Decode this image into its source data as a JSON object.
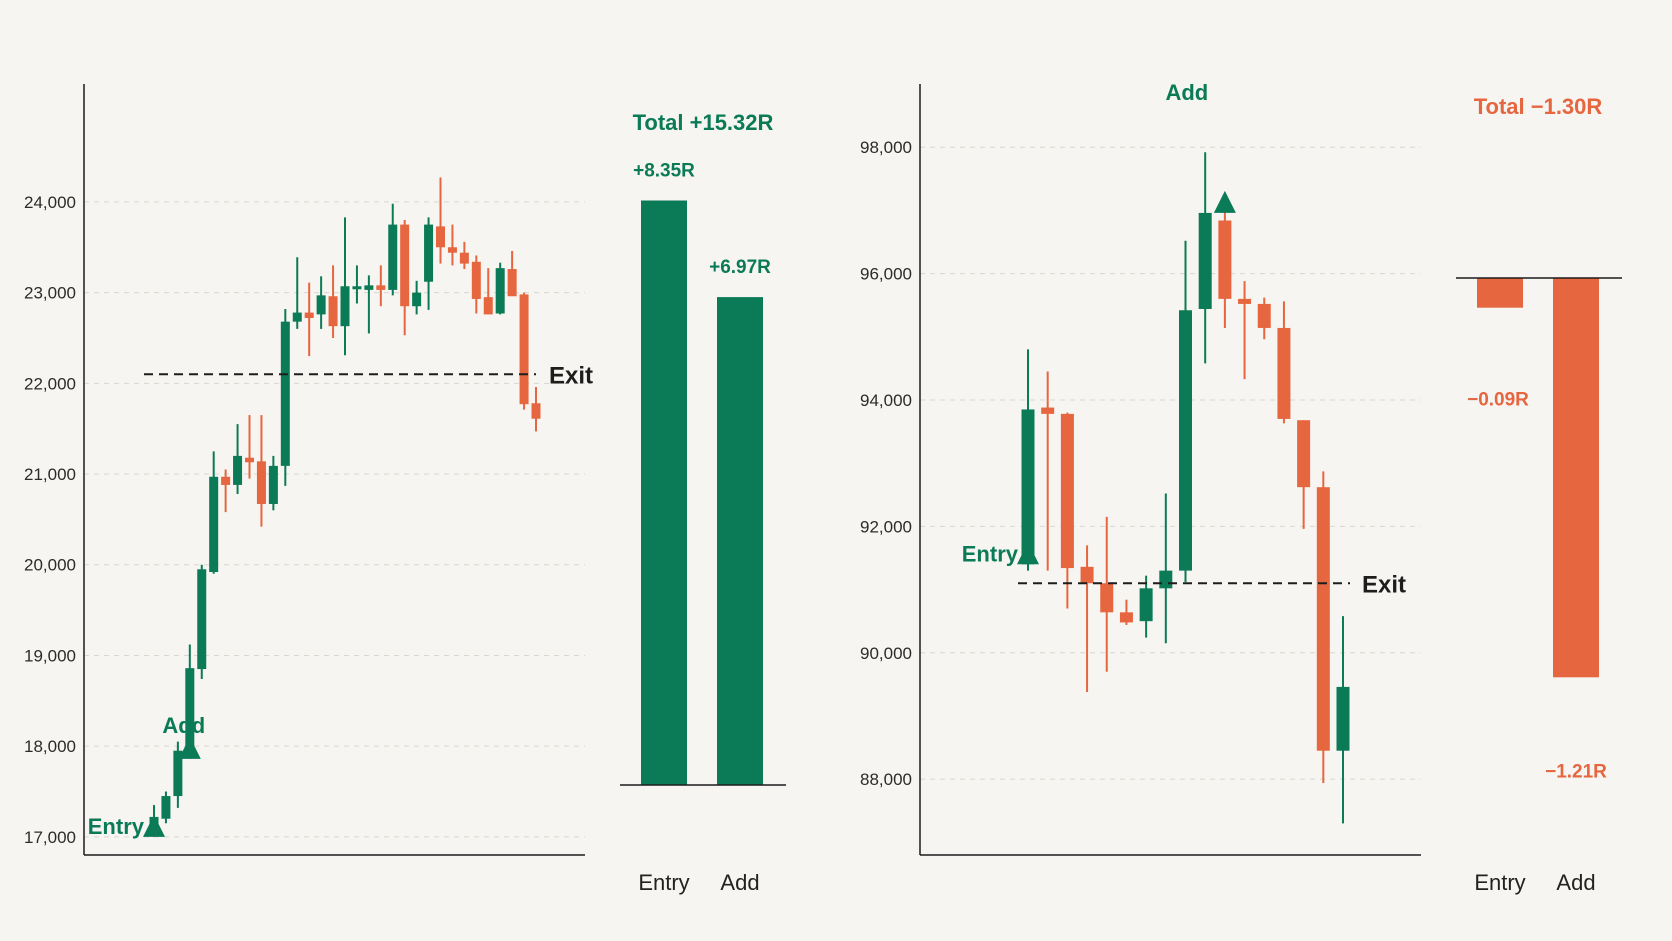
{
  "colors": {
    "up": "#0b7a57",
    "down": "#e5663f",
    "grid": "#d9d6cf",
    "axis": "#1d1d1d"
  },
  "chart_data": [
    {
      "type": "candlestick",
      "ylim": [
        16800,
        25300
      ],
      "yticks": [
        17000,
        18000,
        19000,
        20000,
        21000,
        22000,
        23000,
        24000
      ],
      "ytick_labels": [
        "17,000",
        "18,000",
        "19,000",
        "20,000",
        "21,000",
        "22,000",
        "23,000",
        "24,000"
      ],
      "grid": "horizontal dashed",
      "exit_level": 22100,
      "exit_label": "Exit",
      "markers": [
        {
          "label": "Entry",
          "candle": 0,
          "price": 17000,
          "label_side": "left"
        },
        {
          "label": "Add",
          "candle": 3,
          "price": 17860,
          "label_side": "above"
        }
      ],
      "candles": [
        {
          "o": 17050,
          "h": 17350,
          "l": 17000,
          "c": 17220
        },
        {
          "o": 17200,
          "h": 17500,
          "l": 17150,
          "c": 17450
        },
        {
          "o": 17450,
          "h": 18050,
          "l": 17320,
          "c": 17950
        },
        {
          "o": 17900,
          "h": 19120,
          "l": 17860,
          "c": 18860
        },
        {
          "o": 18850,
          "h": 20000,
          "l": 18740,
          "c": 19950
        },
        {
          "o": 19920,
          "h": 21250,
          "l": 19900,
          "c": 20970
        },
        {
          "o": 20970,
          "h": 21050,
          "l": 20580,
          "c": 20880
        },
        {
          "o": 20880,
          "h": 21550,
          "l": 20780,
          "c": 21200
        },
        {
          "o": 21180,
          "h": 21650,
          "l": 20950,
          "c": 21130
        },
        {
          "o": 21140,
          "h": 21650,
          "l": 20420,
          "c": 20670
        },
        {
          "o": 20670,
          "h": 21200,
          "l": 20600,
          "c": 21090
        },
        {
          "o": 21090,
          "h": 22820,
          "l": 20870,
          "c": 22680
        },
        {
          "o": 22680,
          "h": 23390,
          "l": 22600,
          "c": 22780
        },
        {
          "o": 22780,
          "h": 23110,
          "l": 22300,
          "c": 22720
        },
        {
          "o": 22760,
          "h": 23180,
          "l": 22600,
          "c": 22970
        },
        {
          "o": 22960,
          "h": 23300,
          "l": 22500,
          "c": 22630
        },
        {
          "o": 22630,
          "h": 23830,
          "l": 22310,
          "c": 23070
        },
        {
          "o": 23040,
          "h": 23300,
          "l": 22880,
          "c": 23070
        },
        {
          "o": 23030,
          "h": 23190,
          "l": 22550,
          "c": 23080
        },
        {
          "o": 23080,
          "h": 23300,
          "l": 22850,
          "c": 23030
        },
        {
          "o": 23030,
          "h": 23980,
          "l": 22970,
          "c": 23750
        },
        {
          "o": 23750,
          "h": 23800,
          "l": 22530,
          "c": 22850
        },
        {
          "o": 22850,
          "h": 23130,
          "l": 22760,
          "c": 23000
        },
        {
          "o": 23120,
          "h": 23830,
          "l": 22810,
          "c": 23750
        },
        {
          "o": 23730,
          "h": 24270,
          "l": 23320,
          "c": 23500
        },
        {
          "o": 23500,
          "h": 23750,
          "l": 23300,
          "c": 23440
        },
        {
          "o": 23440,
          "h": 23560,
          "l": 23260,
          "c": 23320
        },
        {
          "o": 23340,
          "h": 23410,
          "l": 22770,
          "c": 22930
        },
        {
          "o": 22950,
          "h": 23270,
          "l": 22760,
          "c": 22760
        },
        {
          "o": 22770,
          "h": 23330,
          "l": 22760,
          "c": 23270
        },
        {
          "o": 23260,
          "h": 23460,
          "l": 22980,
          "c": 22960
        },
        {
          "o": 22980,
          "h": 23000,
          "l": 21710,
          "c": 21770
        },
        {
          "o": 21780,
          "h": 21960,
          "l": 21470,
          "c": 21610
        }
      ]
    },
    {
      "type": "bar",
      "title": "Total +15.32R",
      "categories": [
        "Entry",
        "Add"
      ],
      "values": [
        8.35,
        6.97
      ],
      "value_labels": [
        "+8.35R",
        "+6.97R"
      ],
      "baseline": 0
    },
    {
      "type": "candlestick",
      "ylim": [
        86800,
        99000
      ],
      "yticks": [
        88000,
        90000,
        92000,
        94000,
        96000,
        98000
      ],
      "ytick_labels": [
        "88,000",
        "90,000",
        "92,000",
        "94,000",
        "96,000",
        "98,000"
      ],
      "grid": "horizontal dashed",
      "exit_level": 91100,
      "exit_label": "Exit",
      "markers": [
        {
          "label": "Entry",
          "candle": 0,
          "price": 91400,
          "label_side": "left"
        },
        {
          "label": "Add",
          "candle": 10,
          "price": 96960,
          "label_side": "top"
        }
      ],
      "candles": [
        {
          "o": 91400,
          "h": 94800,
          "l": 91300,
          "c": 93850
        },
        {
          "o": 93880,
          "h": 94450,
          "l": 91300,
          "c": 93780
        },
        {
          "o": 93780,
          "h": 93800,
          "l": 90700,
          "c": 91340
        },
        {
          "o": 91360,
          "h": 91700,
          "l": 89380,
          "c": 91100
        },
        {
          "o": 91100,
          "h": 92150,
          "l": 89700,
          "c": 90640
        },
        {
          "o": 90640,
          "h": 90840,
          "l": 90440,
          "c": 90480
        },
        {
          "o": 90500,
          "h": 91220,
          "l": 90240,
          "c": 91020
        },
        {
          "o": 91020,
          "h": 92520,
          "l": 90150,
          "c": 91300
        },
        {
          "o": 91300,
          "h": 96520,
          "l": 91120,
          "c": 95420
        },
        {
          "o": 95440,
          "h": 97920,
          "l": 94580,
          "c": 96960
        },
        {
          "o": 96840,
          "h": 97130,
          "l": 95140,
          "c": 95600
        },
        {
          "o": 95600,
          "h": 95880,
          "l": 94330,
          "c": 95520
        },
        {
          "o": 95520,
          "h": 95620,
          "l": 94960,
          "c": 95140
        },
        {
          "o": 95140,
          "h": 95560,
          "l": 93630,
          "c": 93700
        },
        {
          "o": 93680,
          "h": 93680,
          "l": 91960,
          "c": 92620
        },
        {
          "o": 92620,
          "h": 92870,
          "l": 87940,
          "c": 88450
        },
        {
          "o": 88450,
          "h": 90580,
          "l": 87300,
          "c": 89460
        }
      ]
    },
    {
      "type": "bar",
      "title": "Total −1.30R",
      "categories": [
        "Entry",
        "Add"
      ],
      "values": [
        -0.09,
        -1.21
      ],
      "value_labels": [
        "−0.09R",
        "−1.21R"
      ],
      "baseline": 0
    }
  ]
}
